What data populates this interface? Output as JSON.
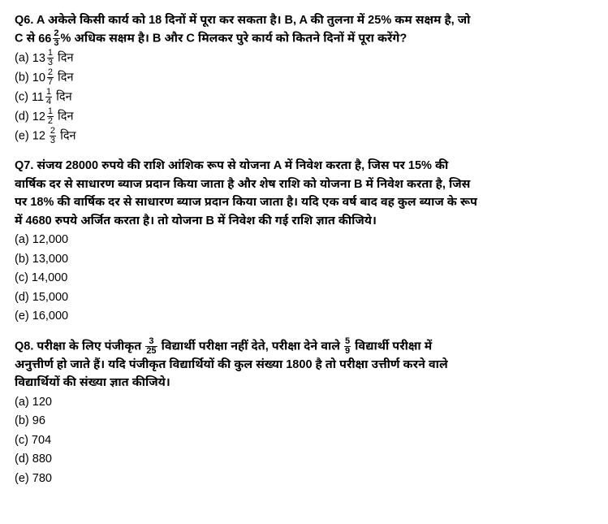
{
  "q6": {
    "number": "Q6.",
    "line1a": "A अकेले किसी कार्य को 18 दिनों में पूरा कर सकता है। B, A की तुलना में 25% कम सक्षम है, जो",
    "line2a": "C से ",
    "frac1_whole": "66",
    "frac1_num": "2",
    "frac1_den": "3",
    "line2b": "% अधिक सक्षम है। B और C मिलकर पुरे कार्य को कितने दिनों में पूरा करेंगे?",
    "opt_a_pre": "(a) ",
    "opt_a_whole": "13",
    "opt_a_num": "1",
    "opt_a_den": "3",
    "opt_a_post": " दिन",
    "opt_b_pre": "(b) ",
    "opt_b_whole": "10",
    "opt_b_num": "2",
    "opt_b_den": "7",
    "opt_b_post": " दिन",
    "opt_c_pre": "(c) ",
    "opt_c_whole": "11",
    "opt_c_num": "1",
    "opt_c_den": "4",
    "opt_c_post": " दिन",
    "opt_d_pre": "(d) ",
    "opt_d_whole": "12",
    "opt_d_num": "1",
    "opt_d_den": "2",
    "opt_d_post": " दिन",
    "opt_e_pre": "(e) 12 ",
    "opt_e_num": "2",
    "opt_e_den": "3",
    "opt_e_post": " दिन"
  },
  "q7": {
    "number": "Q7.",
    "line1": "संजय 28000 रुपये की राशि आंशिक रूप से योजना A में निवेश करता है, जिस पर 15% की",
    "line2": "वार्षिक दर से साधारण ब्याज प्रदान किया जाता है और शेष राशि को योजना B में निवेश करता है, जिस",
    "line3": "पर 18% की वार्षिक दर से साधारण ब्याज प्रदान किया जाता है। यदि एक वर्ष बाद वह कुल ब्याज के रूप",
    "line4": "में 4680 रुपये अर्जित करता है। तो योजना B में निवेश की गई राशि ज्ञात कीजिये।",
    "opt_a": "(a) 12,000",
    "opt_b": "(b) 13,000",
    "opt_c": "(c) 14,000",
    "opt_d": "(d) 15,000",
    "opt_e": "(e) 16,000"
  },
  "q8": {
    "number": "Q8.",
    "line1a": "परीक्षा के लिए पंजीकृत ",
    "frac1_num": "3",
    "frac1_den": "25",
    "line1b": " विद्यार्थी परीक्षा नहीं देते, परीक्षा देने वाले ",
    "frac2_num": "5",
    "frac2_den": "9",
    "line1c": " विद्यार्थी परीक्षा में",
    "line2": "अनुत्तीर्ण हो जाते हैं। यदि पंजीकृत विद्यार्थियों की कुल संख्या 1800 है तो परीक्षा उत्तीर्ण करने वाले",
    "line3": "विद्यार्थियों की संख्या ज्ञात कीजिये।",
    "opt_a": "(a) 120",
    "opt_b": "(b) 96",
    "opt_c": "(c) 704",
    "opt_d": "(d) 880",
    "opt_e": "(e) 780"
  }
}
